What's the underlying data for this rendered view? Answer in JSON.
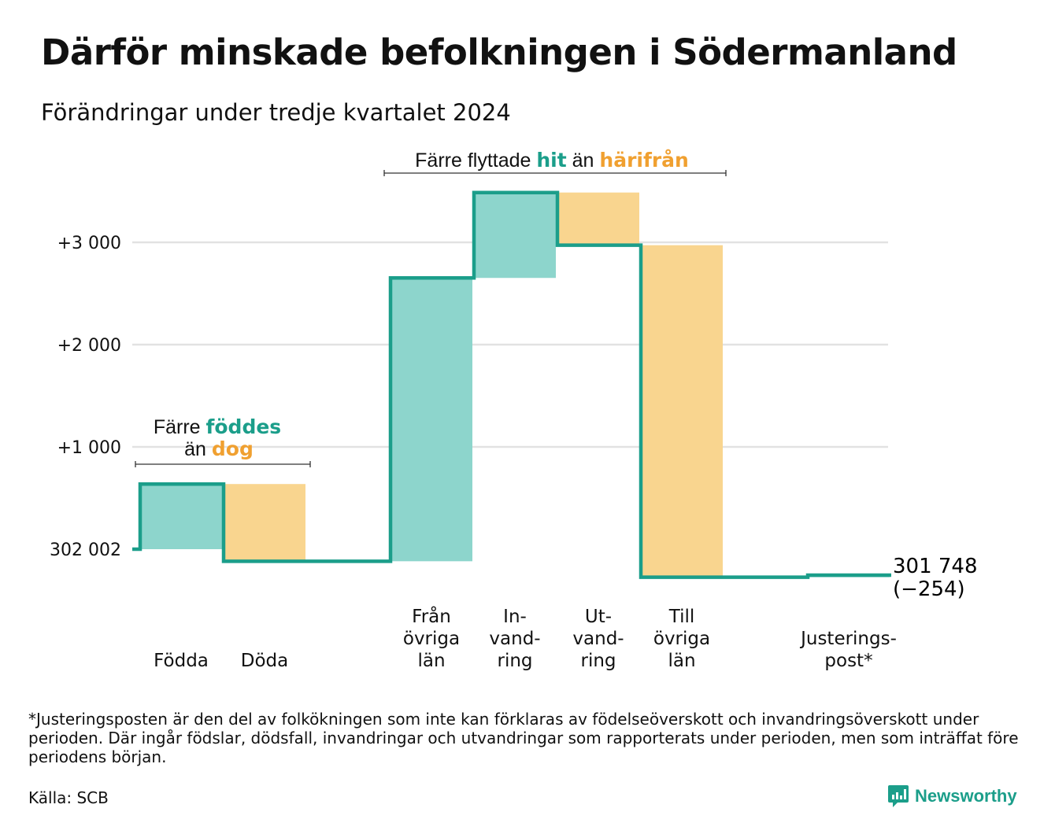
{
  "header": {
    "title": "Därför minskade befolkningen i Södermanland",
    "subtitle": "Förändringar under tredje kvartalet 2024"
  },
  "chart_data": {
    "type": "waterfall",
    "baseline": 302002,
    "baseline_label": "302 002",
    "end_value": 301748,
    "end_label": "301 748",
    "end_change": "(−254)",
    "y_range": [
      -350,
      3600
    ],
    "y_ticks": [
      {
        "value": 0,
        "label": "302 002"
      },
      {
        "value": 1000,
        "label": "+1 000"
      },
      {
        "value": 2000,
        "label": "+2 000"
      },
      {
        "value": 3000,
        "label": "+3 000"
      }
    ],
    "steps": [
      {
        "label": "Födda",
        "lines": [
          "Födda"
        ],
        "delta": 637,
        "direction": "plus"
      },
      {
        "label": "Döda",
        "lines": [
          "Döda"
        ],
        "delta": -755,
        "direction": "minus"
      },
      {
        "label": "Från övriga län",
        "lines": [
          "Från",
          "övriga",
          "län"
        ],
        "delta": 2770,
        "direction": "plus"
      },
      {
        "label": "Invandring",
        "lines": [
          "In-",
          "vand-",
          "ring"
        ],
        "delta": 835,
        "direction": "plus"
      },
      {
        "label": "Utvandring",
        "lines": [
          "Ut-",
          "vand-",
          "ring"
        ],
        "delta": -515,
        "direction": "minus"
      },
      {
        "label": "Till övriga län",
        "lines": [
          "Till",
          "övriga",
          "län"
        ],
        "delta": -3246,
        "direction": "minus"
      },
      {
        "label": "Justeringspost*",
        "lines": [
          "Justerings-",
          "post*"
        ],
        "delta": 20,
        "direction": "plus"
      }
    ],
    "annotations": [
      {
        "parts": [
          {
            "text": "Färre ",
            "color": "#111111"
          },
          {
            "text": "föddes",
            "color": "#1b9e8a",
            "bold": true
          }
        ]
      },
      {
        "parts": [
          {
            "text": "än ",
            "color": "#111111"
          },
          {
            "text": "dog",
            "color": "#f0a030",
            "bold": true
          }
        ]
      },
      {
        "parts": [
          {
            "text": "Färre flyttade ",
            "color": "#111111"
          },
          {
            "text": "hit",
            "color": "#1b9e8a",
            "bold": true
          },
          {
            "text": " än ",
            "color": "#111111"
          },
          {
            "text": "härifrån",
            "color": "#f0a030",
            "bold": true
          }
        ]
      }
    ],
    "colors": {
      "plus_fill": "#8dd5cc",
      "minus_fill": "#f9d58f",
      "line": "#1b9e8a",
      "grid": "#e2e2e2",
      "plus_text": "#1b9e8a",
      "minus_text": "#f0a030"
    }
  },
  "footer": {
    "footnote": "*Justeringsposten är den del av folkökningen som inte kan förklaras av födelseöverskott och invandringsöverskott under perioden. Där ingår födslar, dödsfall, invandringar och utvandringar som rapporterats under perioden, men som inträffat före periodens början.",
    "source": "Källa: SCB",
    "logo_text": "Newsworthy",
    "logo_icon": "newsworthy-logo-icon"
  }
}
